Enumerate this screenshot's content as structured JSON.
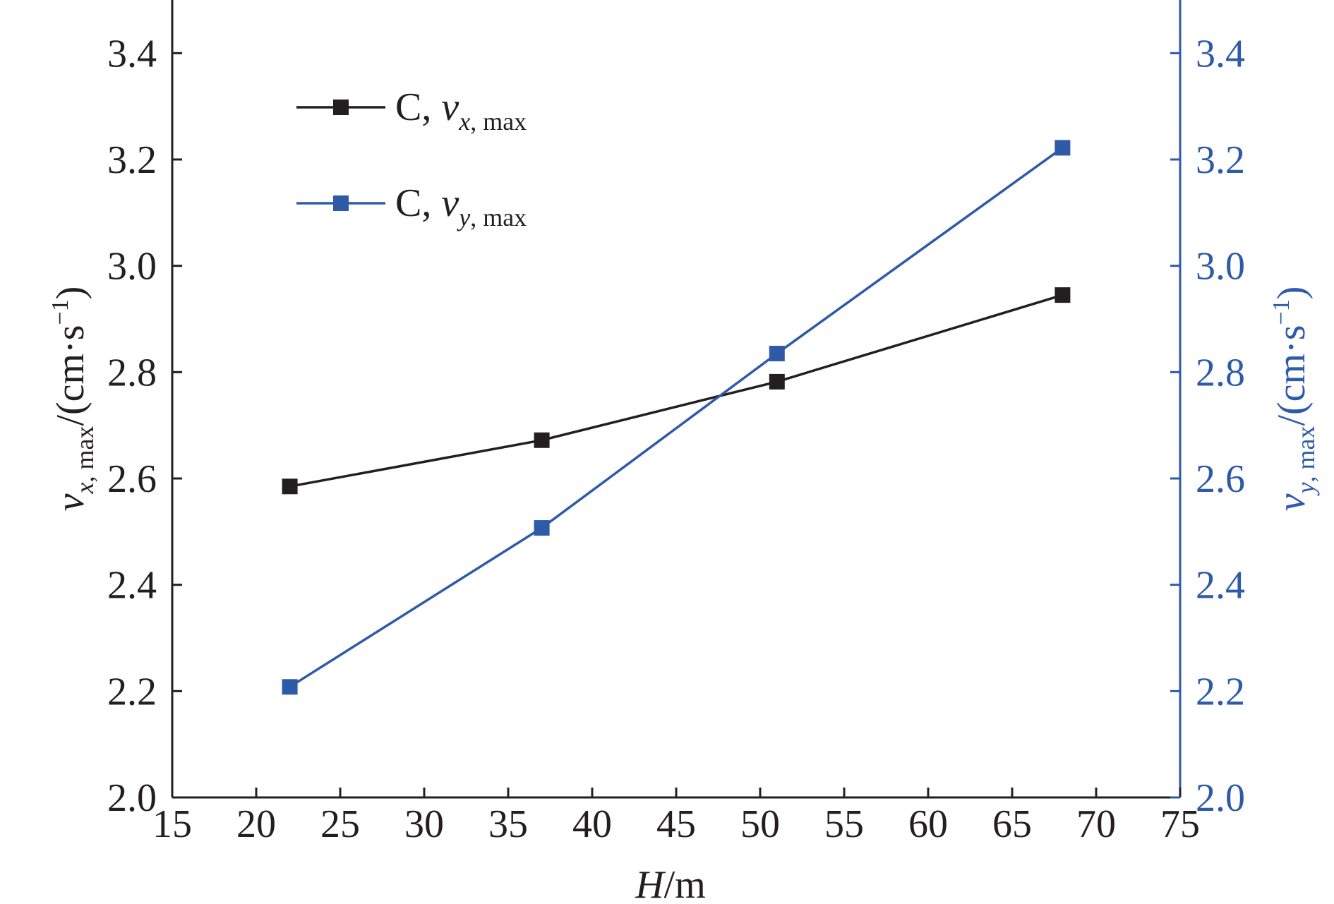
{
  "chart_data": {
    "type": "line",
    "title": "",
    "x": [
      22,
      37,
      51,
      68
    ],
    "xlim": [
      15,
      75
    ],
    "x_ticks": [
      "15",
      "20",
      "25",
      "30",
      "35",
      "40",
      "45",
      "50",
      "55",
      "60",
      "65",
      "70",
      "75"
    ],
    "xlabel": {
      "var": "H",
      "unit": "/m"
    },
    "ylim_left": [
      2.0,
      3.5
    ],
    "ylim_right": [
      2.0,
      3.5
    ],
    "y_ticks_left": [
      "2.0",
      "2.2",
      "2.4",
      "2.6",
      "2.8",
      "3.0",
      "3.2",
      "3.4"
    ],
    "y_ticks_right": [
      "2.0",
      "2.2",
      "2.4",
      "2.6",
      "2.8",
      "3.0",
      "3.2",
      "3.4"
    ],
    "ylabel_left": {
      "var": "v",
      "sub": "x, max",
      "unit": "/(cm·s",
      "sup": "−1",
      "close": ")"
    },
    "ylabel_right": {
      "var": "v",
      "sub": "y, max",
      "unit": "/(cm·s",
      "sup": "−1",
      "close": ")"
    },
    "series": [
      {
        "name": "C, v",
        "name_prefix": "C, ",
        "name_var": "v",
        "name_sub": "x, max",
        "axis": "left",
        "values": [
          2.585,
          2.672,
          2.782,
          2.945
        ],
        "color": "#231f20",
        "marker": "square"
      },
      {
        "name": "C, v",
        "name_prefix": "C, ",
        "name_var": "v",
        "name_sub": "y, max",
        "axis": "right",
        "values": [
          2.208,
          2.507,
          2.835,
          3.222
        ],
        "color": "#2e5aa8",
        "marker": "square"
      }
    ],
    "legend_position": "top-left",
    "grid": false
  }
}
